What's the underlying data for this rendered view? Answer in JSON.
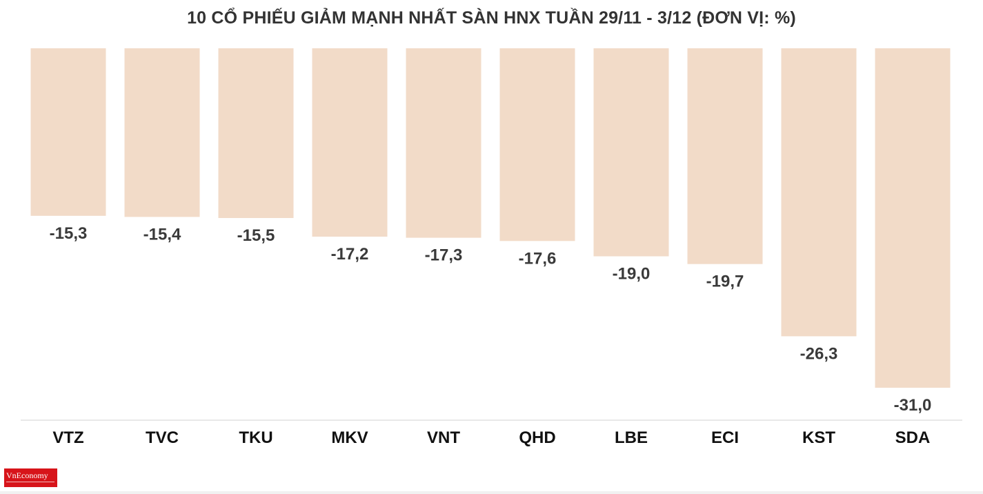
{
  "chart_data": {
    "type": "bar",
    "title": "10 CỔ PHIẾU GIẢM MẠNH NHẤT SÀN HNX TUẦN 29/11 - 3/12 (ĐƠN VỊ: %)",
    "categories": [
      "VTZ",
      "TVC",
      "TKU",
      "MKV",
      "VNT",
      "QHD",
      "LBE",
      "ECI",
      "KST",
      "SDA"
    ],
    "values": [
      -15.3,
      -15.4,
      -15.5,
      -17.2,
      -17.3,
      -17.6,
      -19.0,
      -19.7,
      -26.3,
      -31.0
    ],
    "value_labels": [
      "-15,3",
      "-15,4",
      "-15,5",
      "-17,2",
      "-17,3",
      "-17,6",
      "-19,0",
      "-19,7",
      "-26,3",
      "-31,0"
    ],
    "ylim": [
      -31,
      0
    ],
    "grid": false,
    "legend": "none",
    "bar_color": "#f2dbc8",
    "text_color": "#333333"
  },
  "logo": {
    "brand": "VnEconomy",
    "brand_color": "#d7141a"
  }
}
